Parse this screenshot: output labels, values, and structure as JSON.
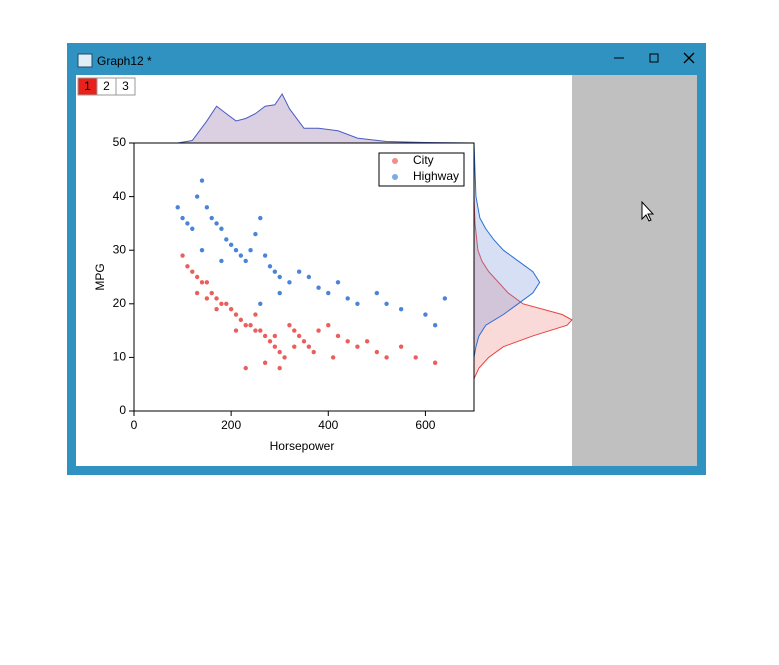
{
  "window": {
    "title": "Graph12 *",
    "tabs": [
      "1",
      "2",
      "3"
    ]
  },
  "chart_data": {
    "type": "scatter",
    "xlabel": "Horsepower",
    "ylabel": "MPG",
    "xlim": [
      0,
      700
    ],
    "xticks": [
      0,
      200,
      400,
      600
    ],
    "ylim": [
      0,
      50
    ],
    "yticks": [
      0,
      10,
      20,
      30,
      40,
      50
    ],
    "legend": "upper right",
    "series": [
      {
        "name": "City",
        "color": "#e8423f",
        "x": [
          100,
          110,
          120,
          130,
          140,
          150,
          160,
          170,
          180,
          190,
          200,
          210,
          220,
          230,
          240,
          250,
          260,
          270,
          280,
          290,
          300,
          310,
          320,
          330,
          340,
          350,
          360,
          380,
          400,
          420,
          440,
          460,
          480,
          500,
          520,
          550,
          580,
          620,
          130,
          170,
          210,
          250,
          290,
          330,
          370,
          410,
          230,
          270,
          300,
          150
        ],
        "values": [
          29,
          27,
          26,
          25,
          24,
          24,
          22,
          21,
          20,
          20,
          19,
          18,
          17,
          16,
          16,
          15,
          15,
          14,
          13,
          12,
          11,
          10,
          16,
          15,
          14,
          13,
          12,
          15,
          16,
          14,
          13,
          12,
          13,
          11,
          10,
          12,
          10,
          9,
          22,
          19,
          15,
          18,
          14,
          12,
          11,
          10,
          8,
          9,
          8,
          21
        ]
      },
      {
        "name": "Highway",
        "color": "#2a6fd4",
        "x": [
          90,
          100,
          110,
          120,
          130,
          140,
          150,
          160,
          170,
          180,
          190,
          200,
          210,
          220,
          230,
          240,
          250,
          260,
          270,
          280,
          290,
          300,
          320,
          340,
          360,
          380,
          400,
          420,
          440,
          460,
          500,
          520,
          550,
          600,
          620,
          640,
          140,
          180,
          260,
          300
        ],
        "values": [
          38,
          36,
          35,
          34,
          40,
          43,
          38,
          36,
          35,
          34,
          32,
          31,
          30,
          29,
          28,
          30,
          33,
          36,
          29,
          27,
          26,
          25,
          24,
          26,
          25,
          23,
          22,
          24,
          21,
          20,
          22,
          20,
          19,
          18,
          16,
          21,
          30,
          28,
          20,
          22
        ]
      }
    ],
    "top_density": {
      "color": "#4a5bc4",
      "x": [
        0,
        90,
        120,
        150,
        170,
        190,
        210,
        230,
        250,
        270,
        290,
        305,
        320,
        350,
        380,
        420,
        460,
        520,
        600,
        700
      ],
      "values": [
        0,
        0,
        0.05,
        0.45,
        0.75,
        0.6,
        0.45,
        0.5,
        0.6,
        0.75,
        0.78,
        1,
        0.7,
        0.3,
        0.3,
        0.25,
        0.1,
        0.03,
        0.01,
        0
      ]
    },
    "right_density": [
      {
        "color": "#e8423f",
        "y": [
          6,
          8,
          10,
          12,
          14,
          16,
          17,
          18,
          20,
          22,
          24,
          26,
          28,
          30,
          35,
          40
        ],
        "values": [
          0,
          0.05,
          0.15,
          0.3,
          0.6,
          0.95,
          1,
          0.9,
          0.5,
          0.35,
          0.25,
          0.15,
          0.08,
          0.04,
          0.01,
          0
        ]
      },
      {
        "color": "#2a6fd4",
        "y": [
          10,
          12,
          14,
          16,
          18,
          20,
          22,
          24,
          26,
          28,
          30,
          32,
          34,
          36,
          40,
          45,
          50
        ],
        "values": [
          0,
          0.02,
          0.05,
          0.12,
          0.3,
          0.45,
          0.6,
          0.67,
          0.6,
          0.45,
          0.3,
          0.2,
          0.12,
          0.06,
          0.02,
          0.01,
          0
        ]
      }
    ]
  }
}
